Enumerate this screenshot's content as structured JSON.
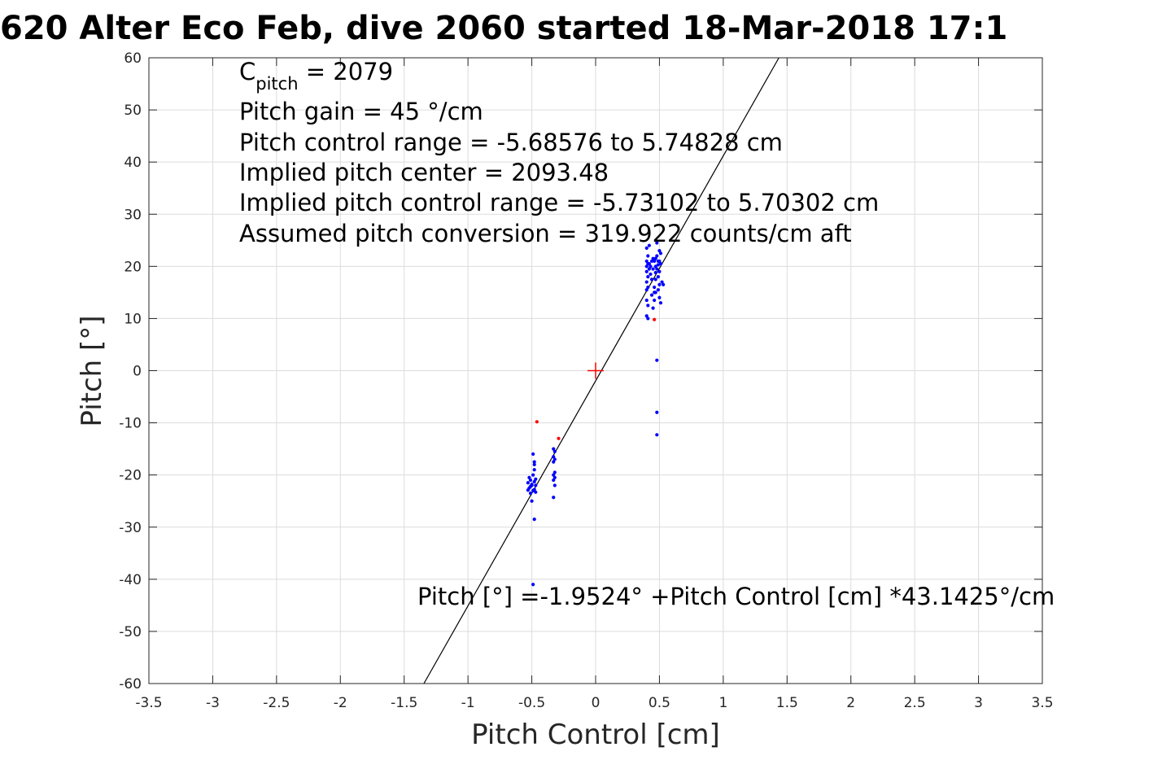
{
  "chart_data": {
    "type": "scatter",
    "title": "620 Alter Eco Feb, dive 2060 started 18-Mar-2018 17:1",
    "xlabel": "Pitch Control [cm]",
    "ylabel": "Pitch [°]",
    "xlim": [
      -3.5,
      3.5
    ],
    "ylim": [
      -60,
      60
    ],
    "grid": true,
    "x_ticks": [
      -3.5,
      -3,
      -2.5,
      -2,
      -1.5,
      -1,
      -0.5,
      0,
      0.5,
      1,
      1.5,
      2,
      2.5,
      3,
      3.5
    ],
    "x_tick_labels": [
      "-3.5",
      "-3",
      "-2.5",
      "-2",
      "-1.5",
      "-1",
      "-0.5",
      "0",
      "0.5",
      "1",
      "1.5",
      "2",
      "2.5",
      "3",
      "3.5"
    ],
    "y_ticks": [
      -60,
      -50,
      -40,
      -30,
      -20,
      -10,
      0,
      10,
      20,
      30,
      40,
      50,
      60
    ],
    "y_tick_labels": [
      "-60",
      "-50",
      "-40",
      "-30",
      "-20",
      "-10",
      "0",
      "10",
      "20",
      "30",
      "40",
      "50",
      "60"
    ],
    "annotations": {
      "c_pitch_base": "C",
      "c_pitch_sub": "pitch",
      "c_pitch_rest": " = 2079",
      "lines": [
        "Pitch gain = 45 °/cm",
        "Pitch control range = -5.68576 to 5.74828 cm",
        "Implied pitch center = 2093.48",
        "Implied pitch control range = -5.73102 to 5.70302 cm",
        "Assumed pitch conversion = 319.922 counts/cm aft"
      ],
      "fit_equation": "Pitch [°] =-1.9524° +Pitch Control [cm] *43.1425°/cm"
    },
    "fit_line": {
      "intercept": -1.9524,
      "slope": 43.1425,
      "color": "#000000"
    },
    "center_marker": {
      "x": 0,
      "y": 0,
      "color": "#ff0000",
      "shape": "plus"
    },
    "series": [
      {
        "color": "#0000ff",
        "points": [
          [
            -0.52,
            -20.5
          ],
          [
            -0.51,
            -21.0
          ],
          [
            -0.53,
            -21.5
          ],
          [
            -0.5,
            -22.0
          ],
          [
            -0.52,
            -22.5
          ],
          [
            -0.49,
            -23.0
          ],
          [
            -0.51,
            -23.5
          ],
          [
            -0.5,
            -21.8
          ],
          [
            -0.48,
            -22.8
          ],
          [
            -0.49,
            -20.0
          ],
          [
            -0.48,
            -19.0
          ],
          [
            -0.48,
            -18.0
          ],
          [
            -0.48,
            -17.5
          ],
          [
            -0.49,
            -16.0
          ],
          [
            -0.47,
            -22.0
          ],
          [
            -0.47,
            -23.3
          ],
          [
            -0.5,
            -25.0
          ],
          [
            -0.48,
            -28.5
          ],
          [
            -0.49,
            -41.0
          ],
          [
            -0.51,
            -22.2
          ],
          [
            -0.53,
            -22.9
          ],
          [
            -0.47,
            -20.8
          ],
          [
            -0.48,
            -21.3
          ],
          [
            -0.33,
            -15.0
          ],
          [
            -0.32,
            -15.5
          ],
          [
            -0.33,
            -16.5
          ],
          [
            -0.32,
            -17.0
          ],
          [
            -0.33,
            -17.5
          ],
          [
            -0.32,
            -19.5
          ],
          [
            -0.33,
            -20.0
          ],
          [
            -0.32,
            -20.5
          ],
          [
            -0.33,
            -21.0
          ],
          [
            -0.32,
            -22.0
          ],
          [
            -0.33,
            -24.3
          ],
          [
            0.4,
            23.5
          ],
          [
            0.41,
            22.0
          ],
          [
            0.4,
            21.0
          ],
          [
            0.41,
            20.5
          ],
          [
            0.4,
            20.0
          ],
          [
            0.42,
            19.5
          ],
          [
            0.4,
            19.0
          ],
          [
            0.41,
            18.0
          ],
          [
            0.4,
            17.0
          ],
          [
            0.41,
            16.0
          ],
          [
            0.4,
            15.5
          ],
          [
            0.4,
            13.5
          ],
          [
            0.41,
            12.5
          ],
          [
            0.4,
            10.5
          ],
          [
            0.41,
            10.0
          ],
          [
            0.42,
            24.0
          ],
          [
            0.43,
            20.0
          ],
          [
            0.43,
            18.5
          ],
          [
            0.44,
            14.5
          ],
          [
            0.44,
            17.5
          ],
          [
            0.45,
            21.5
          ],
          [
            0.45,
            19.5
          ],
          [
            0.46,
            21.0
          ],
          [
            0.46,
            16.0
          ],
          [
            0.46,
            13.5
          ],
          [
            0.45,
            12.0
          ],
          [
            0.47,
            21.5
          ],
          [
            0.47,
            20.0
          ],
          [
            0.47,
            17.5
          ],
          [
            0.47,
            15.0
          ],
          [
            0.48,
            24.5
          ],
          [
            0.48,
            22.0
          ],
          [
            0.48,
            19.5
          ],
          [
            0.49,
            21.0
          ],
          [
            0.49,
            18.0
          ],
          [
            0.49,
            15.5
          ],
          [
            0.5,
            23.0
          ],
          [
            0.5,
            21.0
          ],
          [
            0.5,
            19.0
          ],
          [
            0.5,
            16.5
          ],
          [
            0.5,
            14.0
          ],
          [
            0.51,
            22.5
          ],
          [
            0.51,
            20.5
          ],
          [
            0.51,
            13.0
          ],
          [
            0.52,
            17.0
          ],
          [
            0.53,
            16.5
          ],
          [
            0.48,
            2.0
          ],
          [
            0.48,
            -8.0
          ],
          [
            0.48,
            -12.3
          ],
          [
            0.46,
            15.0
          ],
          [
            0.44,
            21.0
          ],
          [
            0.42,
            20.5
          ],
          [
            0.49,
            20.3
          ],
          [
            0.47,
            18.8
          ]
        ]
      },
      {
        "color": "#ff0000",
        "points": [
          [
            -0.46,
            -9.8
          ],
          [
            -0.29,
            -13.0
          ],
          [
            0.46,
            9.8
          ]
        ]
      }
    ]
  }
}
